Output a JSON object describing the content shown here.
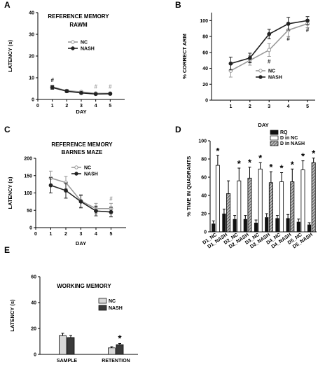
{
  "panels": [
    {
      "label": "A",
      "title": [
        "REFERENCE MEMORY",
        "RAWM"
      ],
      "chart_data": {
        "type": "line",
        "xlabel": "DAY",
        "ylabel": "LATENCY (s)",
        "xlim": [
          0,
          6
        ],
        "ylim": [
          0,
          40
        ],
        "xticks": [
          0,
          1,
          2,
          3,
          4,
          5
        ],
        "yticks": [
          0,
          10,
          20,
          30,
          40
        ],
        "x": [
          1,
          2,
          3,
          4,
          5
        ],
        "series": [
          {
            "name": "NC",
            "values": [
              5.8,
              4.0,
              3.5,
              2.8,
              2.8
            ],
            "errors": [
              0.8,
              0.6,
              0.5,
              0.4,
              0.4
            ],
            "marker": "open",
            "color": "#999999"
          },
          {
            "name": "NASH",
            "values": [
              5.5,
              3.8,
              3.0,
              2.5,
              2.6
            ],
            "errors": [
              0.8,
              0.6,
              0.5,
              0.4,
              0.4
            ],
            "marker": "filled",
            "color": "#222222"
          }
        ],
        "annotations": [
          {
            "text": "#",
            "x": 1,
            "y": 8,
            "color": "#222222"
          },
          {
            "text": "#",
            "x": 4,
            "y": 5,
            "color": "#999999"
          },
          {
            "text": "#",
            "x": 5,
            "y": 5,
            "color": "#999999"
          }
        ],
        "legend": "top-right"
      }
    },
    {
      "label": "B",
      "title": [],
      "chart_data": {
        "type": "line",
        "xlabel": "DAY",
        "ylabel": "% CORRECT ARM",
        "xlim": [
          0,
          5.4
        ],
        "ylim": [
          0,
          110
        ],
        "xticks": [
          1,
          2,
          3,
          4,
          5
        ],
        "yticks": [
          0,
          20,
          40,
          60,
          80,
          100
        ],
        "x": [
          1,
          2,
          3,
          4,
          5
        ],
        "series": [
          {
            "name": "NC",
            "values": [
              37,
              50,
              63,
              88,
              96
            ],
            "errors": [
              8,
              6,
              8,
              8,
              5
            ],
            "marker": "open",
            "color": "#999999"
          },
          {
            "name": "NASH",
            "values": [
              46,
              53,
              83,
              96,
              100
            ],
            "errors": [
              8,
              6,
              6,
              8,
              5
            ],
            "marker": "filled",
            "color": "#222222"
          }
        ],
        "annotations": [
          {
            "text": "#",
            "x": 3,
            "y": 46,
            "color": "#222222"
          },
          {
            "text": "#",
            "x": 4,
            "y": 75,
            "color": "#222222"
          },
          {
            "text": "#",
            "x": 5,
            "y": 86,
            "color": "#222222"
          }
        ],
        "legend": "bottom-right"
      }
    },
    {
      "label": "C",
      "title": [
        "REFERENCE MEMORY",
        "BARNES MAZE"
      ],
      "chart_data": {
        "type": "line",
        "xlabel": "DAY",
        "ylabel": "LATENCY (s)",
        "xlim": [
          0,
          6
        ],
        "ylim": [
          0,
          200
        ],
        "xticks": [
          0,
          1,
          2,
          3,
          4,
          5
        ],
        "yticks": [
          0,
          50,
          100,
          150,
          200
        ],
        "x": [
          1,
          2,
          3,
          4,
          5
        ],
        "series": [
          {
            "name": "NC",
            "values": [
              143,
              130,
              77,
              55,
              55
            ],
            "errors": [
              20,
              18,
              18,
              15,
              15
            ],
            "marker": "open",
            "color": "#999999"
          },
          {
            "name": "NASH",
            "values": [
              122,
              107,
              75,
              48,
              45
            ],
            "errors": [
              22,
              22,
              18,
              14,
              14
            ],
            "marker": "filled",
            "color": "#222222"
          }
        ],
        "annotations": [
          {
            "text": "#",
            "x": 5,
            "y": 78,
            "color": "#999999"
          }
        ],
        "legend": "top-right"
      }
    },
    {
      "label": "D",
      "title": [],
      "chart_data": {
        "type": "bar",
        "ylabel": "% TIME IN QUADRANTS",
        "ylim": [
          0,
          100
        ],
        "yticks": [
          0,
          20,
          40,
          60,
          80,
          100
        ],
        "categories": [
          "D1_NC",
          "D1_NASH",
          "D2_NC",
          "D2_NASH",
          "D3_NC",
          "D3_NASH",
          "D4_NC",
          "D4_NASH",
          "D5_NC",
          "D5_NASH"
        ],
        "series": [
          {
            "name": "RQ",
            "color": "#111111",
            "pattern": "solid"
          },
          {
            "name": "D in NC",
            "color": "#ffffff",
            "pattern": "open"
          },
          {
            "name": "D in NASH",
            "color": "#666666",
            "pattern": "hatch"
          }
        ],
        "bars": [
          {
            "rq": 9,
            "rq_err": 3,
            "d": 73,
            "d_err": 11,
            "d_series": "D in NC",
            "star": true
          },
          {
            "rq": 20,
            "rq_err": 5,
            "d": 42,
            "d_err": 14,
            "d_series": "D in NASH",
            "star": false
          },
          {
            "rq": 14,
            "rq_err": 4,
            "d": 56,
            "d_err": 14,
            "d_series": "D in NC",
            "star": true
          },
          {
            "rq": 14,
            "rq_err": 4,
            "d": 59,
            "d_err": 12,
            "d_series": "D in NASH",
            "star": true
          },
          {
            "rq": 10,
            "rq_err": 3,
            "d": 69,
            "d_err": 7,
            "d_series": "D in NC",
            "star": true
          },
          {
            "rq": 16,
            "rq_err": 4,
            "d": 54,
            "d_err": 12,
            "d_series": "D in NASH",
            "star": true
          },
          {
            "rq": 15,
            "rq_err": 3,
            "d": 55,
            "d_err": 10,
            "d_series": "D in NC",
            "star": true
          },
          {
            "rq": 15,
            "rq_err": 4,
            "d": 55,
            "d_err": 14,
            "d_series": "D in NASH",
            "star": true
          },
          {
            "rq": 11,
            "rq_err": 3,
            "d": 68,
            "d_err": 10,
            "d_series": "D in NC",
            "star": true
          },
          {
            "rq": 8,
            "rq_err": 2,
            "d": 76,
            "d_err": 5,
            "d_series": "D in NASH",
            "star": true
          }
        ],
        "star_text": "*",
        "legend": "top-right"
      }
    },
    {
      "label": "E",
      "title": [
        "WORKING MEMORY"
      ],
      "chart_data": {
        "type": "bar",
        "ylabel": "LATENCY (s)",
        "ylim": [
          0,
          60
        ],
        "yticks": [
          0,
          20,
          40,
          60
        ],
        "categories": [
          "SAMPLE",
          "RETENTION"
        ],
        "series": [
          {
            "name": "NC",
            "values": [
              14.5,
              5.0
            ],
            "errors": [
              1.8,
              0.9
            ],
            "color": "#d8d8d8"
          },
          {
            "name": "NASH",
            "values": [
              13.0,
              7.5
            ],
            "errors": [
              1.6,
              0.9
            ],
            "color": "#3a3a3a"
          }
        ],
        "annotations": [
          {
            "text": "*",
            "category": "RETENTION",
            "series": "NASH"
          }
        ],
        "legend": "top-right"
      }
    }
  ]
}
